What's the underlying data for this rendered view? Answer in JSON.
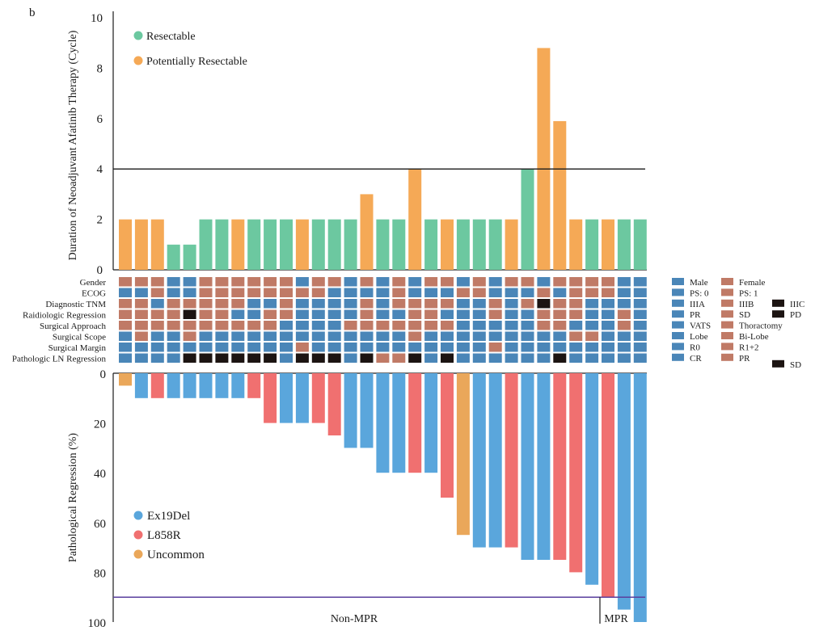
{
  "panel_label": "b",
  "chart_data": [
    {
      "type": "bar",
      "name": "duration-chart",
      "ylabel": "Duration of Neoadjuvant Afatinib Therapy (Cycle)",
      "ylim": [
        0,
        10
      ],
      "yticks": [
        0,
        2,
        4,
        6,
        8,
        10
      ],
      "reference_line": 4,
      "legend": [
        {
          "label": "Resectable",
          "color": "#6cc8a0"
        },
        {
          "label": "Potentially Resectable",
          "color": "#f5a956"
        }
      ],
      "legend_position": "top-left",
      "values": [
        2,
        2,
        2,
        1,
        1,
        2,
        2,
        2,
        2,
        2,
        2,
        2,
        2,
        2,
        2,
        3,
        2,
        2,
        4,
        2,
        2,
        2,
        2,
        2,
        2,
        4,
        8.8,
        5.9,
        2,
        2,
        2,
        2,
        2
      ],
      "groups": [
        "Potentially Resectable",
        "Potentially Resectable",
        "Potentially Resectable",
        "Resectable",
        "Resectable",
        "Resectable",
        "Resectable",
        "Potentially Resectable",
        "Resectable",
        "Resectable",
        "Resectable",
        "Potentially Resectable",
        "Resectable",
        "Resectable",
        "Resectable",
        "Potentially Resectable",
        "Resectable",
        "Resectable",
        "Potentially Resectable",
        "Resectable",
        "Potentially Resectable",
        "Resectable",
        "Resectable",
        "Resectable",
        "Potentially Resectable",
        "Resectable",
        "Potentially Resectable",
        "Potentially Resectable",
        "Potentially Resectable",
        "Resectable",
        "Potentially Resectable",
        "Resectable",
        "Resectable"
      ]
    },
    {
      "type": "heatmap",
      "name": "clinical-features",
      "rows": [
        "Gender",
        "ECOG",
        "Diagnostic TNM",
        "Raidiologic Regression",
        "Surgical Approach",
        "Surgical Scope",
        "Surgical Margin",
        "Pathologic LN Regression"
      ],
      "colors": {
        "blue": "#4a86b8",
        "brown": "#c07a66",
        "black": "#1c1412"
      },
      "legend": [
        {
          "row": "Gender",
          "items": [
            {
              "label": "Male",
              "color": "blue"
            },
            {
              "label": "Female",
              "color": "brown"
            }
          ]
        },
        {
          "row": "ECOG",
          "items": [
            {
              "label": "PS: 0",
              "color": "blue"
            },
            {
              "label": "PS: 1",
              "color": "brown"
            }
          ]
        },
        {
          "row": "Diagnostic TNM",
          "items": [
            {
              "label": "IIIA",
              "color": "blue"
            },
            {
              "label": "IIIB",
              "color": "brown"
            },
            {
              "label": "IIIC",
              "color": "black"
            }
          ]
        },
        {
          "row": "Raidiologic Regression",
          "items": [
            {
              "label": "PR",
              "color": "blue"
            },
            {
              "label": "SD",
              "color": "brown"
            },
            {
              "label": "PD",
              "color": "black"
            }
          ]
        },
        {
          "row": "Surgical Approach",
          "items": [
            {
              "label": "VATS",
              "color": "blue"
            },
            {
              "label": "Thoractomy",
              "color": "brown"
            }
          ]
        },
        {
          "row": "Surgical Scope",
          "items": [
            {
              "label": "Lobe",
              "color": "blue"
            },
            {
              "label": "Bi-Lobe",
              "color": "brown"
            }
          ]
        },
        {
          "row": "Surgical Margin",
          "items": [
            {
              "label": "R0",
              "color": "blue"
            },
            {
              "label": "R1+2",
              "color": "brown"
            }
          ]
        },
        {
          "row": "Pathologic LN Regression",
          "items": [
            {
              "label": "CR",
              "color": "blue"
            },
            {
              "label": "PR",
              "color": "brown"
            },
            {
              "label": "SD",
              "color": "black"
            }
          ]
        }
      ],
      "matrix": [
        "BBBBBBBBBBBBBBBBBBBBBBBBBBBBBBBBB",
        "BBBBBBBBBBBBBBBBBBBBBBBBBBBBBBBBB",
        "BBBBBBBBBBBBBBBBBBBBBBBBBBKBBBBBB",
        "BBBBKBBBBBBBBBBBBBBBBBBBBBBBBBBBB",
        "BBBBBBBBBBBBBBBBBBBBBBBBBBBBBBBBB",
        "BBBBBBBBBBBBBBBBBBBBBBBBBBBBBBBBB",
        "BBBBBBBBBBBBBBBBBBBBBBBBBBBBBBBBB",
        "BBBBKKKKKKBKKKBKBBKBKBBBBBBKBBBBB"
      ],
      "matrix_brown": [
        "RRRBBRRRRRRBRRBRBRBRRBRBRRBRRRRBB",
        "BBRBBRRRRRRRRBBBBRBBBRRBBBRBRRRBB",
        "RRBRRRRRBBRBBBBRBRRRRBBRBRBRRBBBB",
        "RRRRBRRBBRRBBBBRBBRRBBBRBBRRRBBRB",
        "RRRRRRRRRRBBBBRRRRRRRBBBBBRRBBBRB",
        "BRBBRBBBBBBBBBBBBBRBBBBBBBBBRRBBB",
        "BBBBBBBBBBBRBBBBBBBBBBBRBBBBBBBBB",
        "BBBBBBBBBBBBBBBBRRBBBBBBBBBBBBBBB"
      ]
    },
    {
      "type": "bar",
      "name": "pathological-regression",
      "ylabel": "Pathological Regression (%)",
      "ylim": [
        0,
        100
      ],
      "yticks": [
        0,
        20,
        40,
        60,
        80,
        100
      ],
      "inverted": true,
      "reference_line": 90,
      "legend": [
        {
          "label": "Ex19Del",
          "color": "#5aa6dc"
        },
        {
          "label": "L858R",
          "color": "#f07070"
        },
        {
          "label": "Uncommon",
          "color": "#eaa75a"
        }
      ],
      "legend_position": "bottom-left",
      "values": [
        5,
        10,
        10,
        10,
        10,
        10,
        10,
        10,
        10,
        20,
        20,
        20,
        20,
        25,
        30,
        30,
        40,
        40,
        40,
        40,
        50,
        65,
        70,
        70,
        70,
        75,
        75,
        75,
        80,
        85,
        90,
        95,
        100
      ],
      "groups": [
        "Uncommon",
        "Ex19Del",
        "L858R",
        "Ex19Del",
        "Ex19Del",
        "Ex19Del",
        "Ex19Del",
        "Ex19Del",
        "L858R",
        "L858R",
        "Ex19Del",
        "Ex19Del",
        "L858R",
        "L858R",
        "Ex19Del",
        "Ex19Del",
        "Ex19Del",
        "Ex19Del",
        "L858R",
        "Ex19Del",
        "L858R",
        "Uncommon",
        "Ex19Del",
        "Ex19Del",
        "L858R",
        "Ex19Del",
        "Ex19Del",
        "L858R",
        "L858R",
        "Ex19Del",
        "L858R",
        "Ex19Del",
        "Ex19Del"
      ],
      "group_labels": [
        "Non-MPR",
        "MPR"
      ]
    }
  ]
}
